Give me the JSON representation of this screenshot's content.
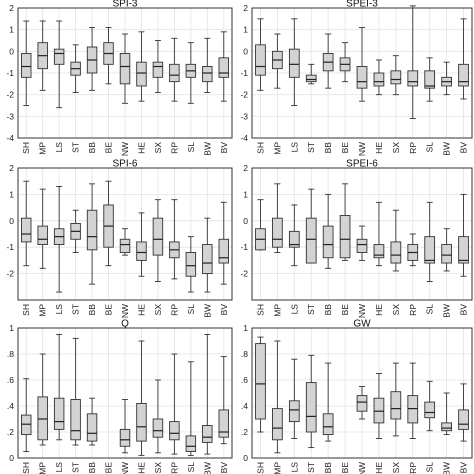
{
  "chart_data": [
    {
      "type": "boxplot",
      "title": "SPI-3",
      "categories": [
        "SH",
        "MP",
        "LS",
        "ST",
        "BB",
        "BE",
        "NW",
        "HE",
        "SX",
        "RP",
        "SL",
        "BW",
        "BV"
      ],
      "ylim": [
        -4,
        2
      ],
      "yticks": [
        -4,
        -3,
        -2,
        -1,
        0,
        1,
        2
      ],
      "ytick_labels": [
        "-4",
        "-3",
        "-2",
        "-1",
        "0",
        "1",
        "2"
      ],
      "boxes": [
        {
          "min": -2.5,
          "q1": -1.2,
          "median": -0.7,
          "q3": -0.1,
          "max": 1.4
        },
        {
          "min": -1.8,
          "q1": -0.8,
          "median": -0.2,
          "q3": 0.4,
          "max": 1.4
        },
        {
          "min": -2.6,
          "q1": -0.6,
          "median": -0.1,
          "q3": 0.1,
          "max": 1.4
        },
        {
          "min": -1.9,
          "q1": -1.1,
          "median": -0.8,
          "q3": -0.5,
          "max": 0.3
        },
        {
          "min": -1.8,
          "q1": -1.0,
          "median": -0.4,
          "q3": 0.2,
          "max": 1.1
        },
        {
          "min": -1.5,
          "q1": -0.6,
          "median": -0.1,
          "q3": 0.4,
          "max": 1.1
        },
        {
          "min": -2.4,
          "q1": -1.5,
          "median": -0.7,
          "q3": -0.1,
          "max": 0.8
        },
        {
          "min": -2.3,
          "q1": -1.6,
          "median": -1.0,
          "q3": -0.5,
          "max": 0.9
        },
        {
          "min": -1.9,
          "q1": -1.2,
          "median": -0.7,
          "q3": -0.5,
          "max": 0.5
        },
        {
          "min": -2.3,
          "q1": -1.4,
          "median": -1.1,
          "q3": -0.6,
          "max": 0.6
        },
        {
          "min": -2.4,
          "q1": -1.2,
          "median": -0.9,
          "q3": -0.6,
          "max": 0.4
        },
        {
          "min": -1.9,
          "q1": -1.4,
          "median": -1.0,
          "q3": -0.7,
          "max": 0.6
        },
        {
          "min": -2.3,
          "q1": -1.2,
          "median": -1.0,
          "q3": -0.3,
          "max": 0.9
        }
      ]
    },
    {
      "type": "boxplot",
      "title": "SPEI-3",
      "categories": [
        "SH",
        "MP",
        "LS",
        "ST",
        "BB",
        "BE",
        "NW",
        "HE",
        "SX",
        "RP",
        "SL",
        "BW",
        "BV"
      ],
      "ylim": [
        -4,
        2
      ],
      "yticks": [
        -4,
        -3,
        -2,
        -1,
        0,
        1,
        2
      ],
      "ytick_labels": [
        "-4",
        "-3",
        "-2",
        "-1",
        "0",
        "1",
        "2"
      ],
      "boxes": [
        {
          "min": -1.8,
          "q1": -1.1,
          "median": -0.7,
          "q3": 0.3,
          "max": 1.5
        },
        {
          "min": -1.7,
          "q1": -0.8,
          "median": -0.4,
          "q3": 0.0,
          "max": 0.8
        },
        {
          "min": -2.5,
          "q1": -1.2,
          "median": -0.6,
          "q3": 0.1,
          "max": 1.5
        },
        {
          "min": -1.5,
          "q1": -1.4,
          "median": -1.3,
          "q3": -1.1,
          "max": -0.6
        },
        {
          "min": -1.7,
          "q1": -0.9,
          "median": -0.5,
          "q3": -0.1,
          "max": 0.8
        },
        {
          "min": -1.4,
          "q1": -0.9,
          "median": -0.6,
          "q3": -0.3,
          "max": 0.4
        },
        {
          "min": -2.3,
          "q1": -1.7,
          "median": -1.4,
          "q3": -0.7,
          "max": 1.1
        },
        {
          "min": -2.0,
          "q1": -1.6,
          "median": -1.4,
          "q3": -1.0,
          "max": -0.4
        },
        {
          "min": -2.0,
          "q1": -1.5,
          "median": -1.3,
          "q3": -0.9,
          "max": -0.2
        },
        {
          "min": -3.1,
          "q1": -1.6,
          "median": -1.4,
          "q3": -0.9,
          "max": 2.1
        },
        {
          "min": -2.3,
          "q1": -1.7,
          "median": -1.6,
          "q3": -0.9,
          "max": -0.3
        },
        {
          "min": -2.0,
          "q1": -1.6,
          "median": -1.4,
          "q3": -1.2,
          "max": -0.5
        },
        {
          "min": -2.2,
          "q1": -1.6,
          "median": -1.4,
          "q3": -0.6,
          "max": 1.5
        }
      ]
    },
    {
      "type": "boxplot",
      "title": "SPI-6",
      "categories": [
        "SH",
        "MP",
        "LS",
        "ST",
        "BB",
        "BE",
        "NW",
        "HE",
        "SX",
        "RP",
        "SL",
        "BW",
        "BV"
      ],
      "ylim": [
        -3,
        2
      ],
      "yticks": [
        -2,
        -1,
        0,
        1,
        2
      ],
      "ytick_labels": [
        "-2",
        "-1",
        "0",
        "1",
        "2"
      ],
      "boxes": [
        {
          "min": -1.7,
          "q1": -0.8,
          "median": -0.5,
          "q3": 0.1,
          "max": 1.5
        },
        {
          "min": -1.8,
          "q1": -0.9,
          "median": -0.7,
          "q3": -0.2,
          "max": 1.2
        },
        {
          "min": -2.7,
          "q1": -0.9,
          "median": -0.6,
          "q3": -0.3,
          "max": 1.3
        },
        {
          "min": -1.2,
          "q1": -0.7,
          "median": -0.4,
          "q3": -0.1,
          "max": 0.4
        },
        {
          "min": -2.4,
          "q1": -1.1,
          "median": -0.6,
          "q3": 0.4,
          "max": 1.4
        },
        {
          "min": -1.7,
          "q1": -1.0,
          "median": -0.2,
          "q3": 0.6,
          "max": 1.5
        },
        {
          "min": -1.3,
          "q1": -1.2,
          "median": -0.9,
          "q3": -0.7,
          "max": -0.3
        },
        {
          "min": -2.1,
          "q1": -1.5,
          "median": -1.2,
          "q3": -0.8,
          "max": 0.3
        },
        {
          "min": -2.3,
          "q1": -1.3,
          "median": -0.7,
          "q3": 0.1,
          "max": 0.8
        },
        {
          "min": -2.2,
          "q1": -1.4,
          "median": -1.1,
          "q3": -0.8,
          "max": 0.8
        },
        {
          "min": -2.7,
          "q1": -2.1,
          "median": -1.7,
          "q3": -1.2,
          "max": -0.6
        },
        {
          "min": -2.7,
          "q1": -2.0,
          "median": -1.6,
          "q3": -0.9,
          "max": 0.1
        },
        {
          "min": -2.4,
          "q1": -1.6,
          "median": -1.4,
          "q3": -0.7,
          "max": 0.7
        }
      ]
    },
    {
      "type": "boxplot",
      "title": "SPEI-6",
      "categories": [
        "SH",
        "MP",
        "LS",
        "ST",
        "BB",
        "BE",
        "NW",
        "HE",
        "SX",
        "RP",
        "SL",
        "BW",
        "BV"
      ],
      "ylim": [
        -3,
        2
      ],
      "yticks": [
        -2,
        -1,
        0,
        1,
        2
      ],
      "ytick_labels": [
        "-2",
        "-1",
        "0",
        "1",
        "2"
      ],
      "boxes": [
        {
          "min": -1.1,
          "q1": -1.1,
          "median": -0.7,
          "q3": -0.3,
          "max": 0.8
        },
        {
          "min": -1.2,
          "q1": -1.0,
          "median": -0.7,
          "q3": 0.1,
          "max": 1.4
        },
        {
          "min": -1.7,
          "q1": -1.0,
          "median": -0.9,
          "q3": -0.4,
          "max": 0.6
        },
        {
          "min": -1.6,
          "q1": -1.6,
          "median": -0.7,
          "q3": 0.1,
          "max": 1.2
        },
        {
          "min": -1.8,
          "q1": -1.4,
          "median": -0.9,
          "q3": -0.2,
          "max": 1.0
        },
        {
          "min": -1.5,
          "q1": -1.4,
          "median": -0.7,
          "q3": 0.2,
          "max": 1.4
        },
        {
          "min": -1.5,
          "q1": -1.2,
          "median": -0.9,
          "q3": -0.7,
          "max": -0.2
        },
        {
          "min": -1.7,
          "q1": -1.4,
          "median": -1.3,
          "q3": -0.9,
          "max": 0.7
        },
        {
          "min": -1.9,
          "q1": -1.6,
          "median": -1.3,
          "q3": -0.8,
          "max": 0.4
        },
        {
          "min": -1.7,
          "q1": -1.5,
          "median": -1.2,
          "q3": -0.9,
          "max": -0.5
        },
        {
          "min": -2.3,
          "q1": -1.6,
          "median": -1.5,
          "q3": -0.6,
          "max": 0.7
        },
        {
          "min": -1.9,
          "q1": -1.6,
          "median": -1.3,
          "q3": -0.9,
          "max": -0.3
        },
        {
          "min": -2.1,
          "q1": -1.6,
          "median": -1.5,
          "q3": -0.6,
          "max": 1.0
        }
      ]
    },
    {
      "type": "boxplot",
      "title": "Q",
      "categories": [
        "SH",
        "MP",
        "LS",
        "ST",
        "BB",
        "BE",
        "NW",
        "HE",
        "SX",
        "RP",
        "SL",
        "BW",
        "BV"
      ],
      "ylim": [
        0,
        1
      ],
      "yticks": [
        0,
        0.2,
        0.4,
        0.6,
        0.8,
        1
      ],
      "ytick_labels": [
        "0",
        ".2",
        ".4",
        ".6",
        ".8",
        "1"
      ],
      "boxes": [
        {
          "min": 0.05,
          "q1": 0.18,
          "median": 0.26,
          "q3": 0.33,
          "max": 0.61
        },
        {
          "min": 0.1,
          "q1": 0.14,
          "median": 0.3,
          "q3": 0.47,
          "max": 0.8
        },
        {
          "min": 0.14,
          "q1": 0.22,
          "median": 0.28,
          "q3": 0.46,
          "max": 0.95
        },
        {
          "min": 0.1,
          "q1": 0.14,
          "median": 0.21,
          "q3": 0.45,
          "max": 0.92
        },
        {
          "min": 0.1,
          "q1": 0.13,
          "median": 0.19,
          "q3": 0.34,
          "max": 0.46
        },
        {
          "min": null,
          "q1": null,
          "median": null,
          "q3": null,
          "max": null
        },
        {
          "min": 0.04,
          "q1": 0.09,
          "median": 0.14,
          "q3": 0.22,
          "max": 0.45
        },
        {
          "min": 0.02,
          "q1": 0.13,
          "median": 0.24,
          "q3": 0.42,
          "max": 0.9
        },
        {
          "min": 0.04,
          "q1": 0.16,
          "median": 0.21,
          "q3": 0.3,
          "max": 0.6
        },
        {
          "min": 0.03,
          "q1": 0.14,
          "median": 0.19,
          "q3": 0.28,
          "max": 0.8
        },
        {
          "min": 0.02,
          "q1": 0.05,
          "median": 0.09,
          "q3": 0.17,
          "max": 0.74
        },
        {
          "min": 0.03,
          "q1": 0.12,
          "median": 0.16,
          "q3": 0.25,
          "max": 0.95
        },
        {
          "min": 0.11,
          "q1": 0.16,
          "median": 0.2,
          "q3": 0.37,
          "max": 0.78
        }
      ]
    },
    {
      "type": "boxplot",
      "title": "GW",
      "categories": [
        "SH",
        "MP",
        "LS",
        "ST",
        "BB",
        "BE",
        "NW",
        "HE",
        "SX",
        "RP",
        "SL",
        "BW",
        "BV"
      ],
      "ylim": [
        0,
        1
      ],
      "yticks": [
        0,
        0.2,
        0.4,
        0.6,
        0.8,
        1
      ],
      "ytick_labels": [
        "0",
        ".2",
        ".4",
        ".6",
        ".8",
        "1"
      ],
      "boxes": [
        {
          "min": 0.2,
          "q1": 0.3,
          "median": 0.57,
          "q3": 0.88,
          "max": 0.93
        },
        {
          "min": 0.04,
          "q1": 0.14,
          "median": 0.23,
          "q3": 0.38,
          "max": 0.9
        },
        {
          "min": 0.15,
          "q1": 0.28,
          "median": 0.37,
          "q3": 0.44,
          "max": 0.76
        },
        {
          "min": 0.08,
          "q1": 0.2,
          "median": 0.32,
          "q3": 0.58,
          "max": 0.79
        },
        {
          "min": 0.13,
          "q1": 0.18,
          "median": 0.24,
          "q3": 0.34,
          "max": 0.73
        },
        {
          "min": null,
          "q1": null,
          "median": null,
          "q3": null,
          "max": null
        },
        {
          "min": 0.3,
          "q1": 0.36,
          "median": 0.43,
          "q3": 0.48,
          "max": 0.55
        },
        {
          "min": 0.15,
          "q1": 0.27,
          "median": 0.36,
          "q3": 0.46,
          "max": 0.65
        },
        {
          "min": 0.17,
          "q1": 0.3,
          "median": 0.38,
          "q3": 0.51,
          "max": 0.73
        },
        {
          "min": 0.15,
          "q1": 0.27,
          "median": 0.38,
          "q3": 0.48,
          "max": 0.73
        },
        {
          "min": 0.21,
          "q1": 0.31,
          "median": 0.35,
          "q3": 0.43,
          "max": 0.59
        },
        {
          "min": 0.18,
          "q1": 0.21,
          "median": 0.23,
          "q3": 0.27,
          "max": 0.5
        },
        {
          "min": 0.13,
          "q1": 0.22,
          "median": 0.26,
          "q3": 0.37,
          "max": 0.57
        }
      ]
    }
  ]
}
